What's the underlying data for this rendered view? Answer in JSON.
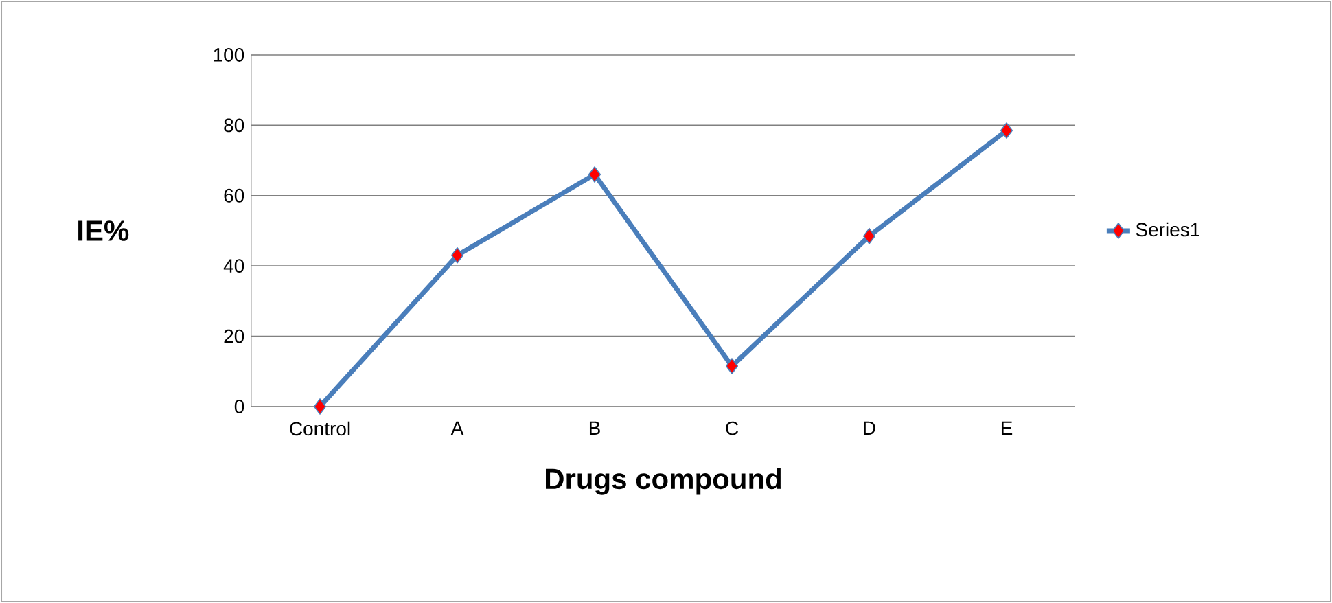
{
  "chart_data": {
    "type": "line",
    "xlabel": "Drugs compound",
    "ylabel": "IE%",
    "categories": [
      "Control",
      "A",
      "B",
      "C",
      "D",
      "E"
    ],
    "series": [
      {
        "name": "Series1",
        "color": "#4a7ebb",
        "values": [
          0,
          43,
          66,
          11.5,
          48.5,
          78.5
        ]
      }
    ],
    "ylim": [
      0,
      100
    ],
    "yticks": [
      0,
      20,
      40,
      60,
      80,
      100
    ],
    "grid": "y",
    "legend": "right",
    "marker": "diamond"
  }
}
